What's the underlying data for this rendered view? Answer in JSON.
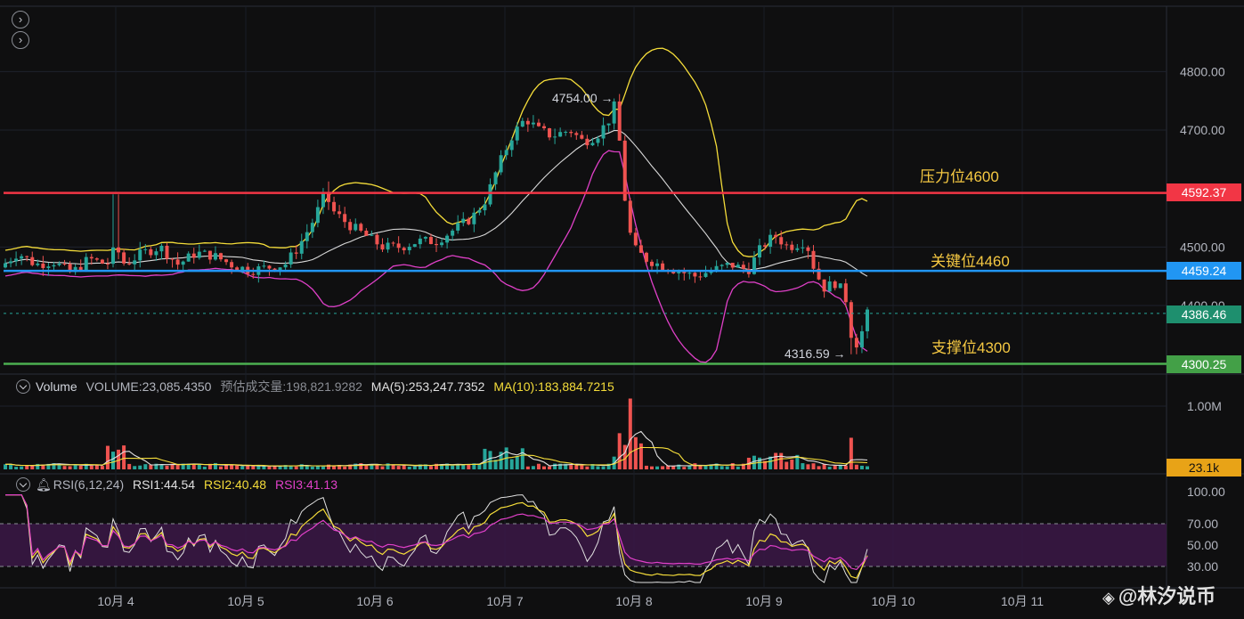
{
  "nav": {
    "scroll_up": "›",
    "scroll_down": "›"
  },
  "colors": {
    "up": "#26a69a",
    "down": "#ef5350",
    "bb_upper": "#f5dd3a",
    "bb_mid": "#d9d9d9",
    "bb_lower": "#e040c8",
    "resist": "#f23645",
    "key": "#2196f3",
    "support": "#4caf50",
    "last": "#26a69a",
    "vol_tag": "#e8a317"
  },
  "price_axis": {
    "ticks": [
      "4800.00",
      "4700.00",
      "4500.00",
      "4400.00"
    ]
  },
  "time_axis": {
    "ticks": [
      "10月 4",
      "10月 5",
      "10月 6",
      "10月 7",
      "10月 8",
      "10月 9",
      "10月 10",
      "10月 11"
    ]
  },
  "levels": {
    "resist": {
      "label": "压力位4600",
      "price": "4592.37"
    },
    "key": {
      "label": "关键位4460",
      "price": "4459.24"
    },
    "last": {
      "price": "4386.46"
    },
    "support": {
      "label": "支撑位4300",
      "price": "4300.25"
    }
  },
  "extrema": {
    "high": "4754.00",
    "low": "4316.59"
  },
  "volume_legend": {
    "name": "Volume",
    "volume": "VOLUME:23,085.4350",
    "est": "预估成交量:198,821.9282",
    "ma5": "MA(5):253,247.7352",
    "ma10": "MA(10):183,884.7215"
  },
  "volume_axis": {
    "ticks": [
      "1.00M"
    ],
    "tag": "23.1k"
  },
  "rsi_legend": {
    "name": "RSI(6,12,24)",
    "rsi1": "RSI1:44.54",
    "rsi2": "RSI2:40.48",
    "rsi3": "RSI3:41.13"
  },
  "rsi_axis": {
    "ticks": [
      "100.00",
      "70.00",
      "50.00",
      "30.00"
    ]
  },
  "watermark": {
    "text": "@林汐说币"
  },
  "chart_data": {
    "type": "candlestick",
    "price_range": [
      4290,
      4820
    ],
    "resistance": 4592.37,
    "key_level": 4459.24,
    "support": 4300.25,
    "last_price": 4386.46,
    "high_marker": 4754.0,
    "low_marker": 4316.59,
    "volume_last": 23085.435,
    "rsi": {
      "rsi1": 44.54,
      "rsi2": 40.48,
      "rsi3": 41.13,
      "overbought": 70,
      "oversold": 30
    }
  }
}
